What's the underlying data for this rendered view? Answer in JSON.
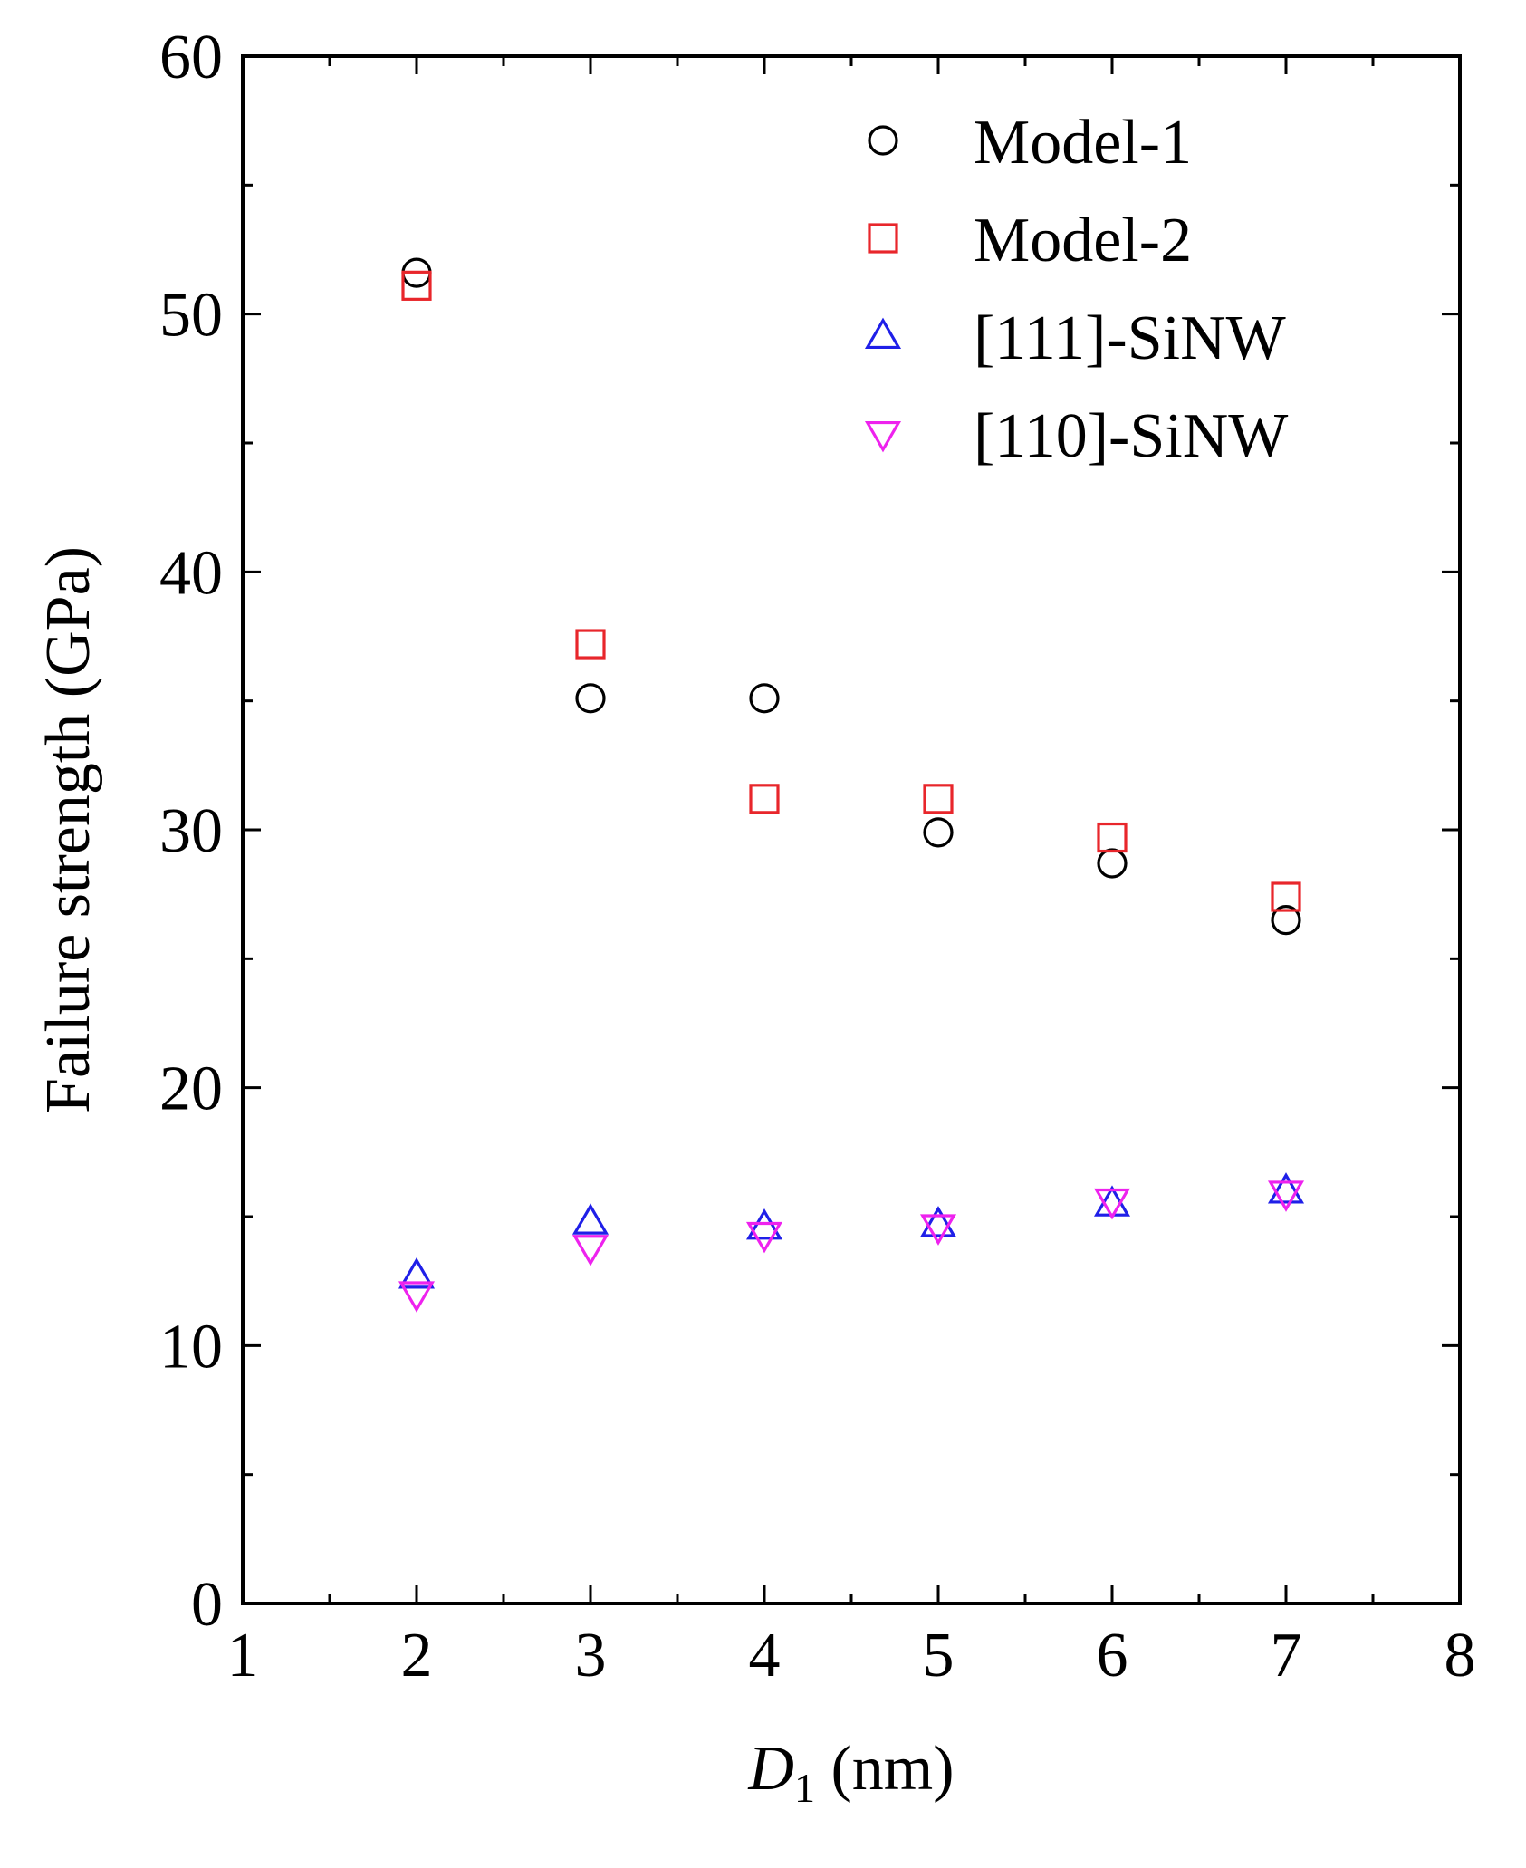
{
  "chart_data": {
    "type": "scatter",
    "title": "",
    "xlabel": {
      "prefix": "D",
      "subscript": "1",
      "suffix": " (nm)"
    },
    "ylabel": "Failure strength (GPa)",
    "xlim": [
      1,
      8
    ],
    "ylim": [
      0,
      60
    ],
    "x_ticks": [
      1,
      2,
      3,
      4,
      5,
      6,
      7,
      8
    ],
    "y_ticks": [
      0,
      10,
      20,
      30,
      40,
      50,
      60
    ],
    "x_minor_step": 0.5,
    "y_minor_step": 5,
    "grid": false,
    "legend_position": "top-right",
    "series": [
      {
        "name": "Model-1",
        "marker": "circle",
        "color": "#000000",
        "x": [
          2,
          3,
          4,
          5,
          6,
          7
        ],
        "y": [
          51.6,
          35.1,
          35.1,
          29.9,
          28.7,
          26.5
        ]
      },
      {
        "name": "Model-2",
        "marker": "square",
        "color": "#e8262b",
        "x": [
          2,
          3,
          4,
          5,
          6,
          7
        ],
        "y": [
          51.1,
          37.2,
          31.2,
          31.2,
          29.7,
          27.4
        ]
      },
      {
        "name": "[111]-SiNW",
        "marker": "triangle-up",
        "color": "#1f1fe8",
        "x": [
          2,
          3,
          4,
          5,
          6,
          7
        ],
        "y": [
          12.7,
          14.8,
          14.6,
          14.7,
          15.5,
          16.0
        ]
      },
      {
        "name": "[110]-SiNW",
        "marker": "triangle-down",
        "color": "#ee22ee",
        "x": [
          2,
          3,
          4,
          5,
          6,
          7
        ],
        "y": [
          12.0,
          13.8,
          14.3,
          14.6,
          15.6,
          15.9
        ]
      }
    ]
  }
}
